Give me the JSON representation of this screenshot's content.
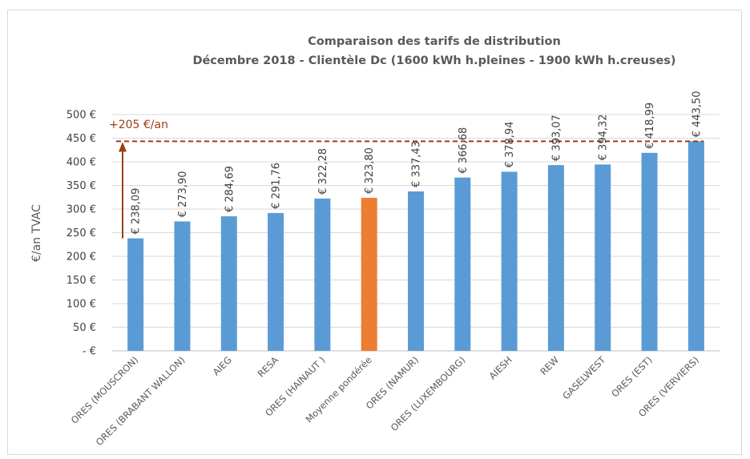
{
  "chart_data": {
    "type": "bar",
    "title": "Comparaison des tarifs de distribution",
    "subtitle": "Décembre 2018 - Clientèle Dc (1600 kWh h.pleines - 1900 kWh h.creuses)",
    "ylabel": "€/an TVAC",
    "xlabel": "",
    "ylim": [
      0,
      500
    ],
    "ytick_labels": [
      "- €",
      "50 €",
      "100 €",
      "150 €",
      "200 €",
      "250 €",
      "300 €",
      "350 €",
      "400 €",
      "450 €",
      "500 €"
    ],
    "grid": true,
    "categories": [
      "ORES (MOUSCRON)",
      "ORES (BRABANT WALLON)",
      "AIEG",
      "RESA",
      "ORES (HAINAUT )",
      "Moyenne pondérée",
      "ORES (NAMUR)",
      "ORES (LUXEMBOURG)",
      "AIESH",
      "REW",
      "GASELWEST",
      "ORES (EST)",
      "ORES (VERVIERS)"
    ],
    "values": [
      238.09,
      273.9,
      284.69,
      291.76,
      322.28,
      323.8,
      337.43,
      366.68,
      378.94,
      393.07,
      394.32,
      418.99,
      443.5
    ],
    "data_labels": [
      "€ 238,09",
      "€ 273,90",
      "€ 284,69",
      "€ 291,76",
      "€ 322,28",
      "€ 323,80",
      "€ 337,43",
      "€ 366,68",
      "€ 378,94",
      "€ 393,07",
      "€ 394,32",
      "€ 418,99",
      "€ 443,50"
    ],
    "highlight_index": 5,
    "colors": {
      "bar": "#5b9bd5",
      "highlight": "#ed7d31",
      "annotation": "#9c3f12",
      "grid": "#d9d9d9"
    },
    "annotation": {
      "text": "+205 €/an",
      "reference_value": 443.5,
      "arrow_from_value": 238.09
    }
  }
}
